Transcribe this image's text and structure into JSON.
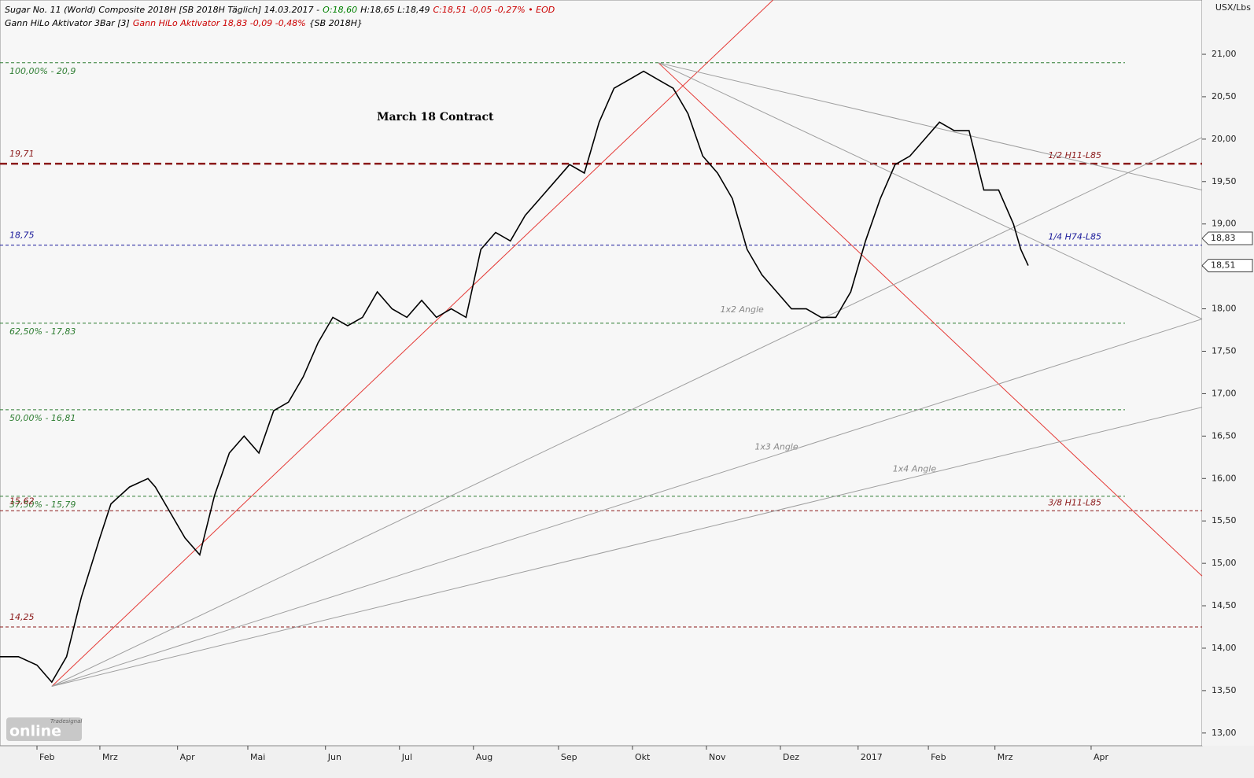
{
  "header": {
    "line1": [
      {
        "text": "Sugar No. 11 (World) Composite 2018H [SB 2018H Täglich] 14.03.2017 -",
        "color": "#000000"
      },
      {
        "text": "O:18,60",
        "color": "#008000"
      },
      {
        "text": "H:18,65 L:18,49",
        "color": "#000000"
      },
      {
        "text": "C:18,51 -0,05 -0,27% • EOD",
        "color": "#cc0000"
      }
    ],
    "line2": [
      {
        "text": "Gann HiLo Aktivator 3Bar [3]",
        "color": "#000000"
      },
      {
        "text": "Gann HiLo Aktivator 18,83 -0,09 -0,48%",
        "color": "#cc0000"
      },
      {
        "text": "{SB 2018H}",
        "color": "#000000"
      }
    ],
    "unit": "USX/Lbs",
    "logo_small": "Tradesignal",
    "logo": "online"
  },
  "chart_data": {
    "type": "line",
    "title": "March 18 Contract",
    "color": "#000000",
    "x": [
      0,
      5,
      10,
      14,
      18,
      22,
      27,
      30,
      35,
      40,
      42,
      46,
      50,
      54,
      58,
      62,
      66,
      70,
      74,
      78,
      82,
      86,
      90,
      94,
      98,
      102,
      106,
      110,
      114,
      118,
      122,
      126,
      130,
      134,
      138,
      142,
      146,
      150,
      154,
      158,
      162,
      166,
      170,
      174,
      178,
      182,
      186,
      190,
      194,
      198,
      202,
      206,
      210,
      214,
      218,
      222,
      226,
      230,
      234,
      238,
      242,
      246,
      250,
      254,
      258,
      262,
      266,
      270,
      274,
      276,
      278
    ],
    "values": [
      13.9,
      13.9,
      13.8,
      13.6,
      13.9,
      14.6,
      15.3,
      15.7,
      15.9,
      16.0,
      15.9,
      15.6,
      15.3,
      15.1,
      15.8,
      16.3,
      16.5,
      16.3,
      16.8,
      16.9,
      17.2,
      17.6,
      17.9,
      17.8,
      17.9,
      18.2,
      18.0,
      17.9,
      18.1,
      17.9,
      18.0,
      17.9,
      18.7,
      18.9,
      18.8,
      19.1,
      19.3,
      19.5,
      19.7,
      19.6,
      20.2,
      20.6,
      20.7,
      20.8,
      20.7,
      20.6,
      20.3,
      19.8,
      19.6,
      19.3,
      18.7,
      18.4,
      18.2,
      18.0,
      18.0,
      17.9,
      17.9,
      18.2,
      18.8,
      19.3,
      19.7,
      19.8,
      20.0,
      20.2,
      20.1,
      20.1,
      19.4,
      19.4,
      19.0,
      18.7,
      18.51
    ],
    "xlim": [
      0,
      325
    ],
    "xticks": [
      {
        "value": 10,
        "label": "Feb"
      },
      {
        "value": 27,
        "label": "Mrz"
      },
      {
        "value": 48,
        "label": "Apr"
      },
      {
        "value": 67,
        "label": "Mai"
      },
      {
        "value": 88,
        "label": "Jun"
      },
      {
        "value": 108,
        "label": "Jul"
      },
      {
        "value": 128,
        "label": "Aug"
      },
      {
        "value": 151,
        "label": "Sep"
      },
      {
        "value": 171,
        "label": "Okt"
      },
      {
        "value": 191,
        "label": "Nov"
      },
      {
        "value": 211,
        "label": "Dez"
      },
      {
        "value": 232,
        "label": "2017"
      },
      {
        "value": 251,
        "label": "Feb"
      },
      {
        "value": 269,
        "label": "Mrz"
      },
      {
        "value": 295,
        "label": "Apr"
      }
    ],
    "ylim": [
      12.85,
      21.64
    ],
    "yticks": [
      {
        "value": 13,
        "label": "13,00"
      },
      {
        "value": 13.5,
        "label": "13,50"
      },
      {
        "value": 14,
        "label": "14,00"
      },
      {
        "value": 14.5,
        "label": "14,50"
      },
      {
        "value": 15,
        "label": "15,00"
      },
      {
        "value": 15.5,
        "label": "15,50"
      },
      {
        "value": 16,
        "label": "16,00"
      },
      {
        "value": 16.5,
        "label": "16,50"
      },
      {
        "value": 17,
        "label": "17,00"
      },
      {
        "value": 17.5,
        "label": "17,50"
      },
      {
        "value": 18,
        "label": "18,00"
      },
      {
        "value": 18.5,
        "label": "18,50"
      },
      {
        "value": 19,
        "label": "19,00"
      },
      {
        "value": 19.5,
        "label": "19,50"
      },
      {
        "value": 20,
        "label": "20,00"
      },
      {
        "value": 20.5,
        "label": "20,50"
      },
      {
        "value": 21,
        "label": "21,00"
      }
    ],
    "levels": [
      {
        "value": 20.9,
        "label": "100,00% - 20,9",
        "color": "#2e7d32",
        "label_pos": "below",
        "full": false
      },
      {
        "value": 19.71,
        "label": "19,71",
        "right_label": "1/2 H11-L85",
        "color": "#8b1a1a",
        "label_pos": "above",
        "full": true,
        "thick": true
      },
      {
        "value": 18.75,
        "label": "18,75",
        "right_label": "1/4 H74-L85",
        "color": "#1a1a9a",
        "label_pos": "above",
        "full": true
      },
      {
        "value": 17.83,
        "label": "62,50% - 17,83",
        "color": "#2e7d32",
        "label_pos": "below",
        "full": false
      },
      {
        "value": 16.81,
        "label": "50,00% - 16,81",
        "color": "#2e7d32",
        "label_pos": "below",
        "full": false
      },
      {
        "value": 15.79,
        "label": "37,50% - 15,79",
        "color": "#2e7d32",
        "label_pos": "below",
        "full": false
      },
      {
        "value": 15.62,
        "label": "15,62",
        "right_label": "3/8 H11-L85",
        "color": "#8b1a1a",
        "label_pos": "above",
        "full": true
      },
      {
        "value": 14.25,
        "label": "14,25",
        "color": "#8b1a1a",
        "label_pos": "above",
        "full": true
      }
    ],
    "trendlines": [
      {
        "x": [
          14,
          209
        ],
        "values": [
          13.55,
          21.64
        ],
        "color": "#e53935"
      },
      {
        "x": [
          178,
          325
        ],
        "values": [
          20.9,
          14.85
        ],
        "color": "#e53935"
      },
      {
        "x": [
          14,
          325
        ],
        "values": [
          13.55,
          20.02
        ],
        "color": "#9e9e9e",
        "label": "1x2 Angle",
        "label_at": 0.6
      },
      {
        "x": [
          14,
          325
        ],
        "values": [
          13.55,
          17.88
        ],
        "color": "#9e9e9e",
        "label": "1x3 Angle",
        "label_at": 0.63
      },
      {
        "x": [
          14,
          325
        ],
        "values": [
          13.55,
          16.84
        ],
        "color": "#9e9e9e",
        "label": "1x4 Angle",
        "label_at": 0.75
      },
      {
        "x": [
          178,
          325
        ],
        "values": [
          20.9,
          19.4
        ],
        "color": "#9e9e9e"
      },
      {
        "x": [
          178,
          325
        ],
        "values": [
          20.9,
          17.88
        ],
        "color": "#9e9e9e"
      }
    ],
    "markers": [
      {
        "value": 18.83,
        "label": "18,83"
      },
      {
        "value": 18.51,
        "label": "18,51"
      }
    ]
  }
}
